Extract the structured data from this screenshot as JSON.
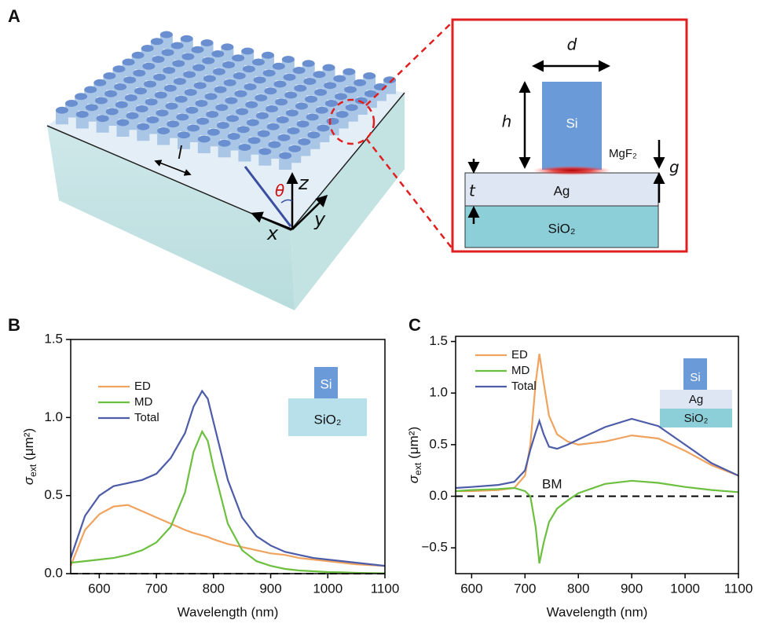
{
  "panel_a": {
    "label": "A",
    "lattice": "l",
    "angle": "θ",
    "z": "z",
    "x": "x",
    "y": "y",
    "inset": {
      "d": "d",
      "h": "h",
      "si": "Si",
      "mgf2": "MgF₂",
      "g": "g",
      "t": "t",
      "ag": "Ag",
      "sio2": "SiO₂"
    }
  },
  "chart_data": [
    {
      "panel": "B",
      "type": "line",
      "xlabel": "Wavelength (nm)",
      "ylabel": {
        "symbol": "σ",
        "subscript": "ext",
        "unit": "(μm²)"
      },
      "xlim": [
        550,
        1100
      ],
      "ylim": [
        0,
        1.5
      ],
      "xticks": [
        600,
        700,
        800,
        900,
        1000,
        1100
      ],
      "yticks": [
        {
          "value": 0,
          "label": "0.0"
        },
        0.5,
        {
          "value": 1,
          "label": "1.0"
        },
        1.5
      ],
      "hline": 0,
      "x": [
        550,
        575,
        600,
        625,
        650,
        675,
        700,
        725,
        750,
        765,
        780,
        790,
        800,
        825,
        850,
        875,
        900,
        925,
        950,
        975,
        1000,
        1025,
        1050,
        1075,
        1100
      ],
      "series": [
        {
          "name": "ED",
          "color": "#f0a35e",
          "values": [
            0.05,
            0.28,
            0.38,
            0.43,
            0.44,
            0.4,
            0.36,
            0.32,
            0.28,
            0.26,
            0.245,
            0.235,
            0.22,
            0.19,
            0.17,
            0.15,
            0.13,
            0.12,
            0.1,
            0.09,
            0.08,
            0.07,
            0.06,
            0.055,
            0.05
          ]
        },
        {
          "name": "MD",
          "color": "#6cbf3f",
          "values": [
            0.07,
            0.08,
            0.09,
            0.1,
            0.12,
            0.15,
            0.2,
            0.3,
            0.52,
            0.78,
            0.91,
            0.85,
            0.68,
            0.32,
            0.15,
            0.08,
            0.05,
            0.03,
            0.02,
            0.015,
            0.01,
            0.008,
            0.005,
            0.003,
            0.002
          ]
        },
        {
          "name": "Total",
          "color": "#4c5ca8",
          "values": [
            0.1,
            0.37,
            0.5,
            0.56,
            0.58,
            0.6,
            0.64,
            0.74,
            0.9,
            1.07,
            1.17,
            1.12,
            0.97,
            0.6,
            0.36,
            0.24,
            0.18,
            0.14,
            0.12,
            0.1,
            0.09,
            0.08,
            0.07,
            0.06,
            0.05
          ]
        }
      ],
      "inset_labels": [
        "Si",
        "SiO₂"
      ]
    },
    {
      "panel": "C",
      "type": "line",
      "xlabel": "Wavelength (nm)",
      "ylabel": {
        "symbol": "σ",
        "subscript": "ext",
        "unit": "(μm²)"
      },
      "xlim": [
        570,
        1100
      ],
      "ylim": [
        -0.75,
        1.55
      ],
      "xticks": [
        600,
        700,
        800,
        900,
        1000,
        1100
      ],
      "yticks": [
        {
          "value": -0.5,
          "label": "−0.5"
        },
        {
          "value": 0,
          "label": "0.0"
        },
        0.5,
        {
          "value": 1,
          "label": "1.0"
        },
        1.5
      ],
      "hline": 0,
      "annotation": "BM",
      "x": [
        570,
        600,
        650,
        680,
        700,
        710,
        720,
        727,
        735,
        745,
        760,
        780,
        800,
        850,
        900,
        950,
        1000,
        1050,
        1100
      ],
      "series": [
        {
          "name": "ED",
          "color": "#f0a35e",
          "values": [
            0.05,
            0.05,
            0.06,
            0.08,
            0.2,
            0.5,
            1.1,
            1.38,
            1.1,
            0.78,
            0.6,
            0.53,
            0.5,
            0.53,
            0.59,
            0.56,
            0.44,
            0.3,
            0.2
          ]
        },
        {
          "name": "MD",
          "color": "#6cbf3f",
          "values": [
            0.05,
            0.06,
            0.07,
            0.08,
            0.05,
            0.0,
            -0.3,
            -0.65,
            -0.45,
            -0.25,
            -0.12,
            -0.04,
            0.03,
            0.12,
            0.15,
            0.13,
            0.09,
            0.06,
            0.04
          ]
        },
        {
          "name": "Total",
          "color": "#4c5ca8",
          "values": [
            0.08,
            0.09,
            0.11,
            0.14,
            0.25,
            0.45,
            0.62,
            0.73,
            0.6,
            0.48,
            0.46,
            0.5,
            0.55,
            0.67,
            0.75,
            0.68,
            0.5,
            0.32,
            0.2
          ]
        }
      ],
      "inset_labels": [
        "Si",
        "Ag",
        "SiO₂"
      ]
    }
  ]
}
